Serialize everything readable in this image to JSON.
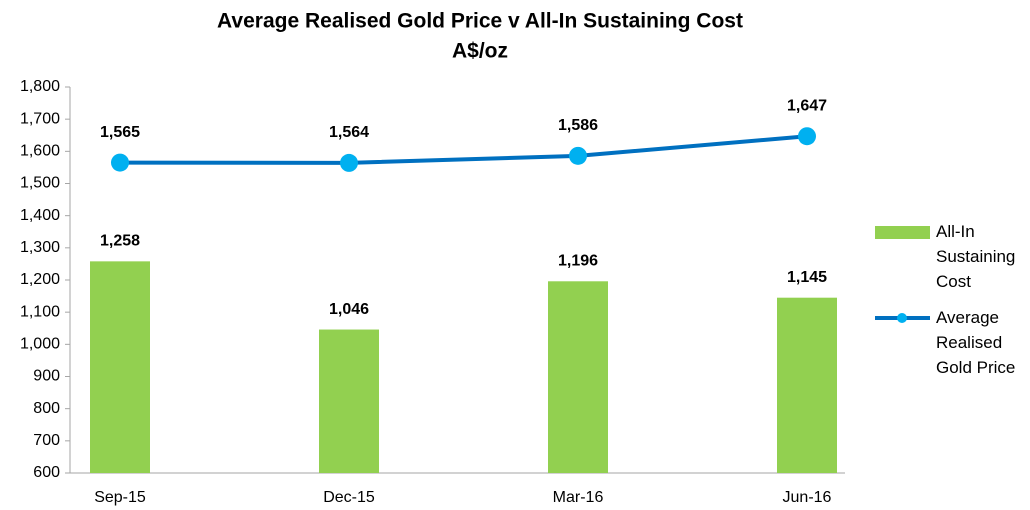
{
  "chart_data": {
    "type": "bar",
    "title": "Average Realised Gold Price v All-In Sustaining Cost",
    "subtitle": "A$/oz",
    "categories": [
      "Sep-15",
      "Dec-15",
      "Mar-16",
      "Jun-16"
    ],
    "series": [
      {
        "name": "All-In Sustaining Cost",
        "type": "bar",
        "color": "#92d050",
        "values": [
          1258,
          1046,
          1196,
          1145
        ],
        "value_labels": [
          "1,258",
          "1,046",
          "1,196",
          "1,145"
        ]
      },
      {
        "name": "Average Realised Gold Price",
        "type": "line",
        "color": "#0070c0",
        "marker_color": "#00b0f0",
        "values": [
          1565,
          1564,
          1586,
          1647
        ],
        "value_labels": [
          "1,565",
          "1,564",
          "1,586",
          "1,647"
        ]
      }
    ],
    "ylim": [
      600,
      1800
    ],
    "yticks": [
      600,
      700,
      800,
      900,
      {
        "value": 1000,
        "label": "1,000"
      },
      {
        "value": 1100,
        "label": "1,100"
      },
      {
        "value": 1200,
        "label": "1,200"
      },
      {
        "value": 1300,
        "label": "1,300"
      },
      {
        "value": 1400,
        "label": "1,400"
      },
      {
        "value": 1500,
        "label": "1,500"
      },
      {
        "value": 1600,
        "label": "1,600"
      },
      {
        "value": 1700,
        "label": "1,700"
      },
      {
        "value": 1800,
        "label": "1,800"
      }
    ],
    "grid": false,
    "legend": "right"
  }
}
